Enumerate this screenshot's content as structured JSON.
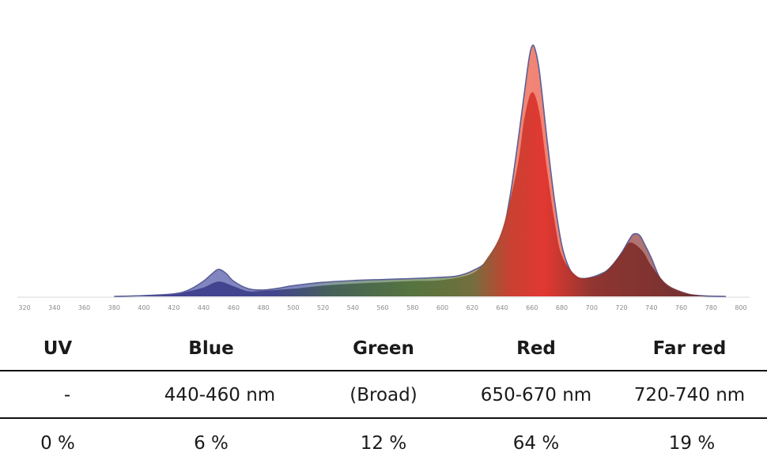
{
  "chart_data": {
    "type": "area",
    "x_ticks": [
      320,
      340,
      360,
      380,
      400,
      420,
      440,
      460,
      480,
      500,
      520,
      540,
      560,
      580,
      600,
      620,
      640,
      660,
      680,
      700,
      720,
      740,
      760,
      780,
      800
    ],
    "xlim": [
      315,
      800
    ],
    "ylim": [
      0,
      1
    ],
    "grid": false,
    "series": [
      {
        "color": "#8a90c8",
        "x": [
          380,
          400,
          420,
          430,
          440,
          445,
          450,
          455,
          460,
          470,
          480,
          490,
          500,
          520,
          540,
          560,
          580,
          600,
          610,
          620,
          630,
          640,
          645,
          650,
          655,
          658,
          660,
          662,
          665,
          670,
          675,
          680,
          685,
          690,
          695,
          700,
          705,
          710,
          715,
          720,
          725,
          728,
          732,
          735,
          740,
          745,
          750,
          760,
          770,
          780,
          790
        ],
        "values": [
          0.0,
          0.003,
          0.01,
          0.025,
          0.06,
          0.085,
          0.106,
          0.09,
          0.06,
          0.03,
          0.025,
          0.032,
          0.042,
          0.055,
          0.062,
          0.066,
          0.07,
          0.075,
          0.08,
          0.1,
          0.14,
          0.25,
          0.38,
          0.58,
          0.8,
          0.93,
          0.98,
          0.97,
          0.88,
          0.62,
          0.38,
          0.2,
          0.11,
          0.075,
          0.07,
          0.075,
          0.085,
          0.1,
          0.13,
          0.17,
          0.22,
          0.244,
          0.24,
          0.21,
          0.15,
          0.08,
          0.04,
          0.012,
          0.004,
          0.001,
          0.0
        ]
      },
      {
        "color": "#5a6e38",
        "x": [
          380,
          400,
          420,
          430,
          440,
          450,
          460,
          470,
          480,
          500,
          520,
          540,
          560,
          580,
          600,
          620,
          630,
          640,
          650,
          655,
          660,
          665,
          670,
          675,
          680,
          690,
          700,
          710,
          720,
          725,
          730,
          735,
          740,
          750,
          760,
          770,
          780
        ],
        "values": [
          0.0,
          0.002,
          0.008,
          0.02,
          0.035,
          0.058,
          0.04,
          0.02,
          0.022,
          0.03,
          0.042,
          0.05,
          0.055,
          0.06,
          0.064,
          0.09,
          0.15,
          0.26,
          0.5,
          0.7,
          0.8,
          0.72,
          0.5,
          0.3,
          0.16,
          0.08,
          0.075,
          0.1,
          0.17,
          0.21,
          0.2,
          0.17,
          0.12,
          0.05,
          0.02,
          0.005,
          0.0
        ]
      }
    ]
  },
  "table": {
    "headers": [
      "UV",
      "Blue",
      "Green",
      "Red",
      "Far red"
    ],
    "bands": [
      "-",
      "440-460 nm",
      "(Broad)",
      "650-670 nm",
      "720-740 nm"
    ],
    "shares": [
      "0 %",
      "6 %",
      "12 %",
      "64 %",
      "19 %"
    ]
  }
}
